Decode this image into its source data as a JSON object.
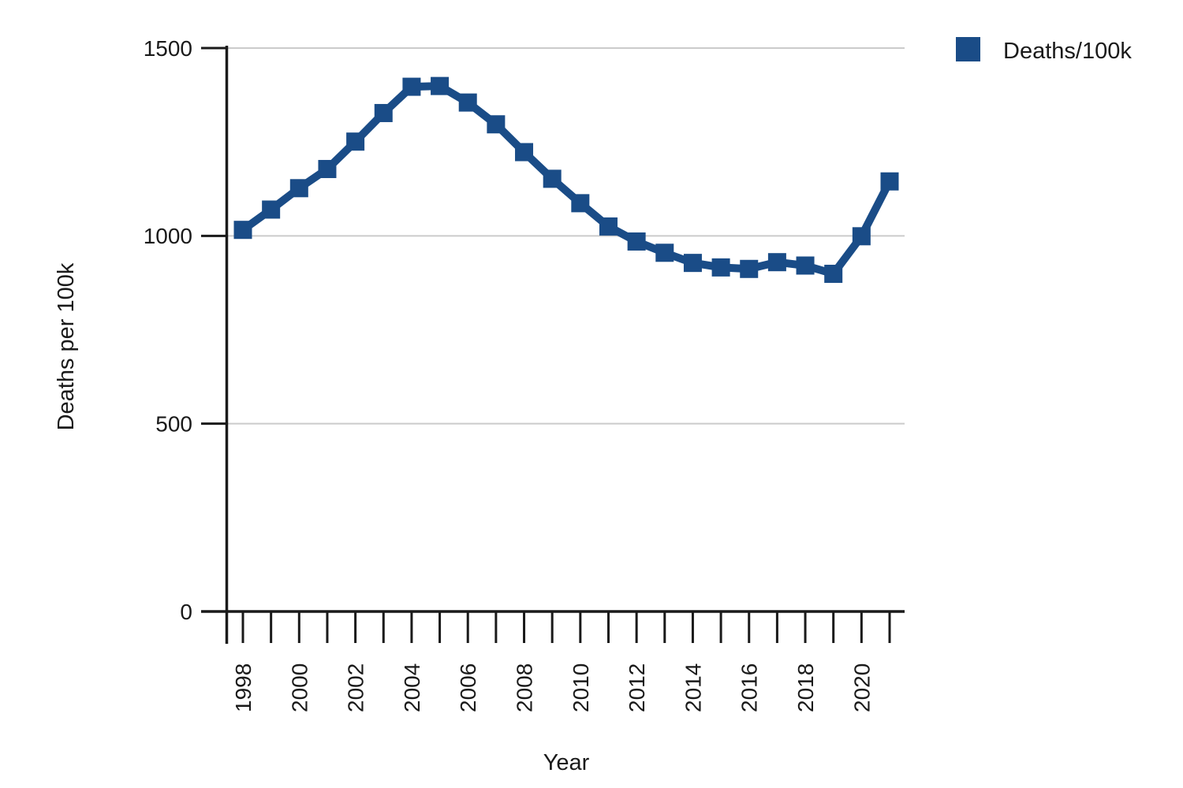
{
  "chart_data": {
    "type": "line",
    "title": "",
    "xlabel": "Year",
    "ylabel": "Deaths per 100k",
    "x": [
      1998,
      1999,
      2000,
      2001,
      2002,
      2003,
      2004,
      2005,
      2006,
      2007,
      2008,
      2009,
      2010,
      2011,
      2012,
      2013,
      2014,
      2015,
      2016,
      2017,
      2018,
      2019,
      2020,
      2021
    ],
    "series": [
      {
        "name": "Deaths/100k",
        "color": "#1A4C87",
        "marker": "square",
        "values": [
          1016,
          1070,
          1127,
          1178,
          1251,
          1327,
          1397,
          1399,
          1355,
          1297,
          1223,
          1152,
          1087,
          1025,
          985,
          955,
          928,
          916,
          912,
          930,
          921,
          899,
          999,
          1145
        ]
      }
    ],
    "ylim": [
      0,
      1500
    ],
    "yticks": [
      0,
      500,
      1000,
      1500
    ],
    "xtick_label_every": 2,
    "grid": true,
    "legend_position": "top-right",
    "colors": {
      "grid": "#cbcbcb",
      "axis": "#1a1a1a",
      "text": "#1a1a1a",
      "background": "#ffffff"
    }
  }
}
